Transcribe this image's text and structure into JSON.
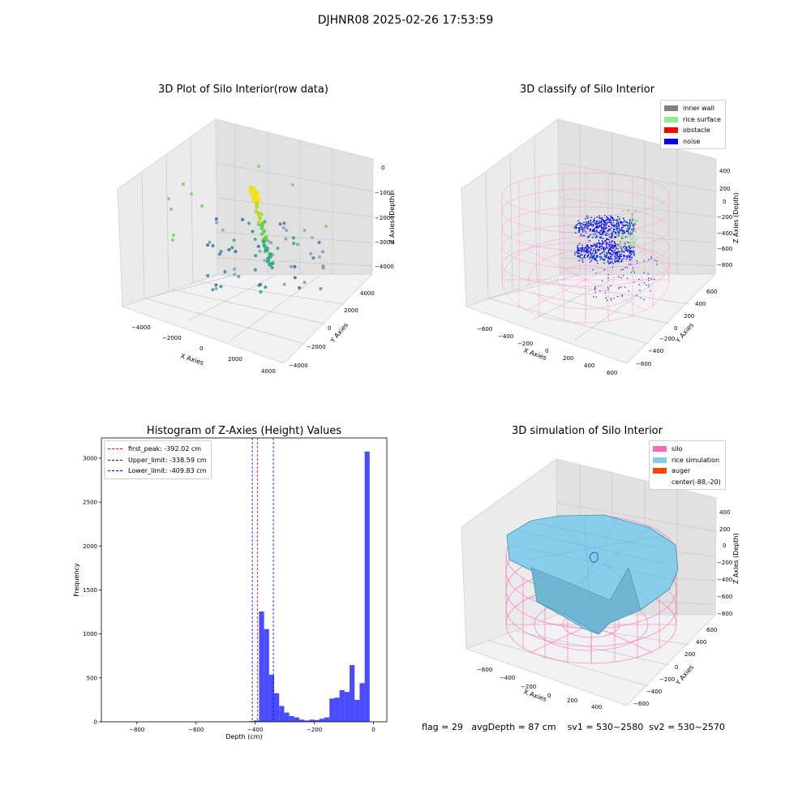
{
  "suptitle": "DJHNR08 2025-02-26 17:53:59",
  "panels": {
    "raw": {
      "title": "3D Plot of Silo Interior(row data)",
      "xlabel": "X Axies",
      "ylabel": "Y Axies",
      "zlabel": "Z Axies (Depth)",
      "xticks": [
        "−4000",
        "−2000",
        "0",
        "2000",
        "4000"
      ],
      "yticks": [
        "4000",
        "2000",
        "0",
        "−2000",
        "−4000"
      ],
      "zticks": [
        "0",
        "−1000",
        "−2000",
        "−3000",
        "−4000"
      ]
    },
    "classify": {
      "title": "3D classify of Silo Interior",
      "xlabel": "X Axies",
      "ylabel": "Y Axies",
      "zlabel": "Z Axies (Depth)",
      "xticks": [
        "−600",
        "−400",
        "−200",
        "0",
        "200",
        "400",
        "600"
      ],
      "yticks": [
        "600",
        "400",
        "200",
        "0",
        "−200",
        "−400",
        "−600"
      ],
      "zticks": [
        "400",
        "200",
        "0",
        "−200",
        "−400",
        "−600",
        "−800"
      ],
      "legend": [
        {
          "label": "inner wall",
          "color": "#808080"
        },
        {
          "label": "rice surface",
          "color": "#90ee90"
        },
        {
          "label": "obstacle",
          "color": "#ff0000"
        },
        {
          "label": "noise",
          "color": "#0000ff"
        }
      ]
    },
    "simulation": {
      "title": "3D simulation of Silo Interior",
      "xlabel": "X Axies",
      "ylabel": "Y Axies",
      "zlabel": "Z Axies (Depth)",
      "xticks": [
        "−600",
        "−400",
        "−200",
        "0",
        "200",
        "400"
      ],
      "yticks": [
        "600",
        "400",
        "200",
        "0",
        "−200",
        "−400",
        "−600"
      ],
      "zticks": [
        "400",
        "200",
        "0",
        "−200",
        "−400",
        "−600",
        "−800"
      ],
      "legend": [
        {
          "label": "silo",
          "color": "#ff69b4"
        },
        {
          "label": "rice simulation",
          "color": "#87ceeb"
        },
        {
          "label": "auger",
          "color": "#ff4500"
        },
        {
          "label": "center(-88,-20)",
          "color": ""
        }
      ]
    }
  },
  "chart_data": {
    "type": "bar",
    "title": "Histogram of Z-Axies (Height) Values",
    "xlabel": "Depth (cm)",
    "ylabel": "Frequency",
    "xlim": [
      -920,
      45
    ],
    "ylim": [
      0,
      3230
    ],
    "bar_color": "#0000ff",
    "xticks": [
      -800,
      -600,
      -400,
      -200,
      0
    ],
    "xtick_labels": [
      "−800",
      "−600",
      "−400",
      "−200",
      "0"
    ],
    "yticks": [
      0,
      500,
      1000,
      1500,
      2000,
      2500,
      3000
    ],
    "yticks_labels": [
      "0",
      "500",
      "1000",
      "1500",
      "2000",
      "2500",
      "3000"
    ],
    "bin_width": 17,
    "bins": [
      {
        "x": -421,
        "v": 8
      },
      {
        "x": -404,
        "v": 15
      },
      {
        "x": -387,
        "v": 1255
      },
      {
        "x": -370,
        "v": 1055
      },
      {
        "x": -353,
        "v": 535
      },
      {
        "x": -336,
        "v": 325
      },
      {
        "x": -319,
        "v": 180
      },
      {
        "x": -302,
        "v": 105
      },
      {
        "x": -285,
        "v": 65
      },
      {
        "x": -268,
        "v": 50
      },
      {
        "x": -251,
        "v": 25
      },
      {
        "x": -234,
        "v": 15
      },
      {
        "x": -217,
        "v": 25
      },
      {
        "x": -200,
        "v": 20
      },
      {
        "x": -183,
        "v": 35
      },
      {
        "x": -166,
        "v": 50
      },
      {
        "x": -149,
        "v": 265
      },
      {
        "x": -132,
        "v": 275
      },
      {
        "x": -115,
        "v": 360
      },
      {
        "x": -98,
        "v": 340
      },
      {
        "x": -81,
        "v": 645
      },
      {
        "x": -64,
        "v": 250
      },
      {
        "x": -47,
        "v": 440
      },
      {
        "x": -30,
        "v": 3075
      }
    ],
    "vlines": [
      {
        "label": "first_peak: -392.02 cm",
        "x": -392.02,
        "color": "#ff0000"
      },
      {
        "label": "Upper_limit: -338.59 cm",
        "x": -338.59,
        "color": "#0000ff"
      },
      {
        "label": "Lower_limit: -409.83 cm",
        "x": -409.83,
        "color": "#0000ff"
      }
    ]
  },
  "status": {
    "flag": "flag = 29",
    "avg_depth": "avgDepth = 87 cm",
    "sv1": "sv1 = 530~2580",
    "sv2": "sv2 = 530~2570"
  }
}
